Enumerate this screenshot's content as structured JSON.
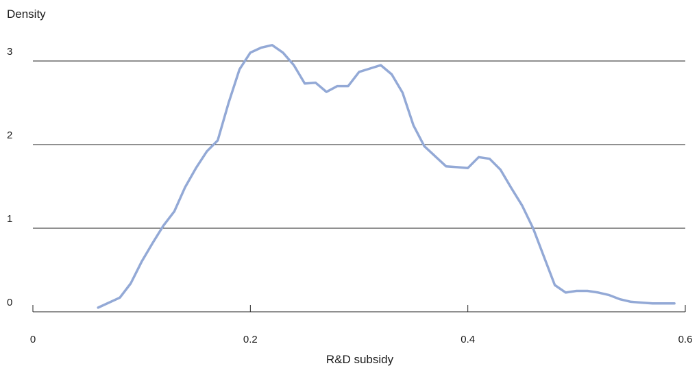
{
  "chart_data": {
    "type": "line",
    "title": "",
    "xlabel": "R&D subsidy",
    "ylabel": "Density",
    "xlim": [
      0,
      0.6
    ],
    "ylim": [
      0,
      3
    ],
    "xticks": [
      0,
      0.2,
      0.4,
      0.6
    ],
    "xtick_labels": [
      "0",
      "0.2",
      "0.4",
      "0.6"
    ],
    "yticks": [
      0,
      1,
      2,
      3
    ],
    "ytick_labels": [
      "0",
      "1",
      "2",
      "3"
    ],
    "grid": "horizontal",
    "legend": "none",
    "line_color": "#93a9d6",
    "series": [
      {
        "x": [
          0.06,
          0.08,
          0.09,
          0.1,
          0.11,
          0.12,
          0.13,
          0.14,
          0.15,
          0.16,
          0.17,
          0.18,
          0.19,
          0.2,
          0.21,
          0.22,
          0.23,
          0.24,
          0.25,
          0.26,
          0.27,
          0.28,
          0.29,
          0.3,
          0.31,
          0.32,
          0.33,
          0.34,
          0.35,
          0.36,
          0.37,
          0.38,
          0.39,
          0.4,
          0.41,
          0.42,
          0.43,
          0.44,
          0.45,
          0.46,
          0.47,
          0.48,
          0.49,
          0.5,
          0.51,
          0.52,
          0.53,
          0.54,
          0.55,
          0.56,
          0.57,
          0.58,
          0.59
        ],
        "values": [
          0.05,
          0.17,
          0.34,
          0.6,
          0.82,
          1.03,
          1.2,
          1.49,
          1.72,
          1.92,
          2.05,
          2.5,
          2.9,
          3.1,
          3.16,
          3.19,
          3.1,
          2.95,
          2.73,
          2.74,
          2.63,
          2.7,
          2.7,
          2.87,
          2.91,
          2.95,
          2.84,
          2.62,
          2.23,
          1.98,
          1.86,
          1.74,
          1.73,
          1.72,
          1.85,
          1.83,
          1.7,
          1.48,
          1.27,
          1.0,
          0.66,
          0.32,
          0.23,
          0.25,
          0.25,
          0.23,
          0.2,
          0.15,
          0.12,
          0.11,
          0.1,
          0.1,
          0.1
        ]
      }
    ]
  }
}
